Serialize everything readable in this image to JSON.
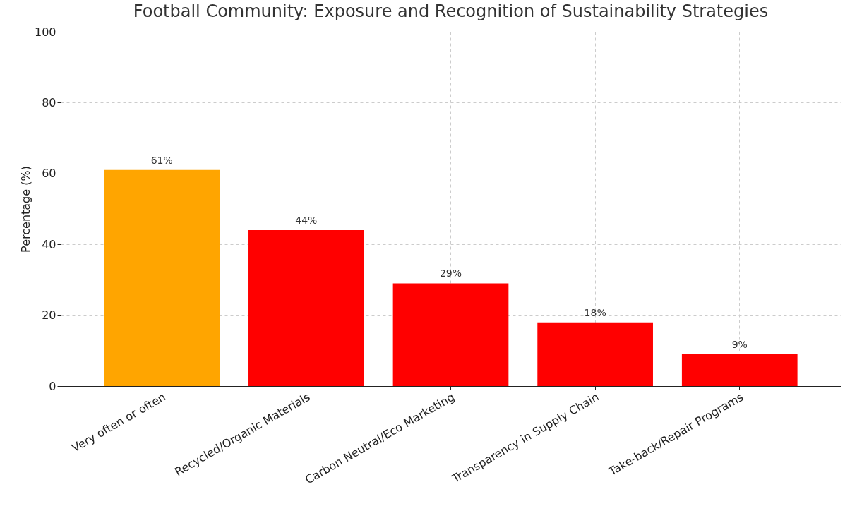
{
  "chart_data": {
    "type": "bar",
    "title": "Football Community: Exposure and Recognition of Sustainability Strategies",
    "ylabel": "Percentage (%)",
    "categories": [
      "Very often or often",
      "Recycled/Organic Materials",
      "Carbon Neutral/Eco Marketing",
      "Transparency in Supply Chain",
      "Take-back/Repair Programs"
    ],
    "values": [
      61,
      44,
      29,
      18,
      9
    ],
    "colors": [
      "#ffa500",
      "#ff0000",
      "#ff0000",
      "#ff0000",
      "#ff0000"
    ],
    "value_labels": [
      "61%",
      "44%",
      "29%",
      "18%",
      "9%"
    ],
    "ylim": [
      0,
      100
    ],
    "yticks": [
      0,
      20,
      40,
      60,
      80,
      100
    ],
    "grid": true
  }
}
